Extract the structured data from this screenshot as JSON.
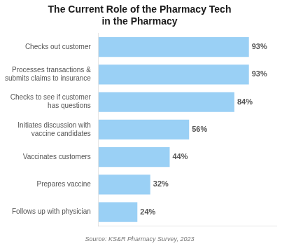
{
  "chart_data": {
    "type": "bar",
    "orientation": "horizontal",
    "title": "The Current Role of the Pharmacy Tech\nin the Pharmacy",
    "categories": [
      "Checks out customer",
      "Processes transactions &\nsubmits claims to insurance",
      "Checks to see if customer\nhas questions",
      "Initiates discussion with\nvaccine candidates",
      "Vaccinates customers",
      "Prepares vaccine",
      "Follows up with physician"
    ],
    "values": [
      93,
      93,
      84,
      56,
      44,
      32,
      24
    ],
    "value_labels": [
      "93%",
      "93%",
      "84%",
      "56%",
      "44%",
      "32%",
      "24%"
    ],
    "data_labels": true,
    "xlim": [
      0,
      110
    ],
    "tick_labels": "y",
    "grid": false,
    "annotation": "Source: KS&R Pharmacy Survey, 2023"
  }
}
